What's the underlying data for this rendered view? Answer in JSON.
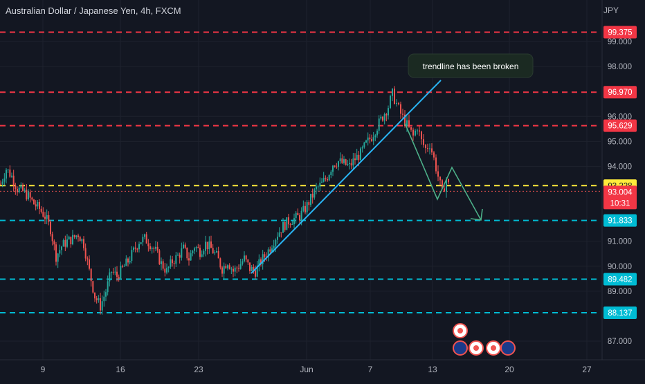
{
  "header": {
    "title": "Australian Dollar / Japanese Yen, 4h, FXCM",
    "currency": "JPY"
  },
  "annotation": {
    "text": "trendline has been broken"
  },
  "colors": {
    "background": "#131722",
    "grid": "#1e222d",
    "up": "#26a69a",
    "down": "#ef5350",
    "red_line": "#f23645",
    "cyan_line": "#00bcd4",
    "yellow_line": "#ffeb3b",
    "trendline": "#29b6f6",
    "arrow": "#4caf88",
    "text": "#d1d4dc",
    "axis_text": "#b2b5be"
  },
  "chart_data": {
    "type": "candlestick",
    "y_axis": {
      "ticks": [
        "99.000",
        "98.000",
        "96.000",
        "95.000",
        "94.000",
        "91.000",
        "90.000",
        "89.000",
        "87.000"
      ],
      "tick_values": [
        99.0,
        98.0,
        96.0,
        95.0,
        94.0,
        91.0,
        90.0,
        89.0,
        87.0
      ]
    },
    "x_axis": {
      "ticks": [
        "9",
        "16",
        "23",
        "Jun",
        "7",
        "13",
        "20",
        "27"
      ]
    },
    "levels": [
      {
        "label": "99.375",
        "value": 99.375,
        "color": "#f23645"
      },
      {
        "label": "96.970",
        "value": 96.97,
        "color": "#f23645"
      },
      {
        "label": "95.629",
        "value": 95.629,
        "color": "#f23645"
      },
      {
        "label": "93.228",
        "value": 93.228,
        "color": "#ffeb3b",
        "text_color": "#131722"
      },
      {
        "label": "91.833",
        "value": 91.833,
        "color": "#00bcd4"
      },
      {
        "label": "89.482",
        "value": 89.482,
        "color": "#00bcd4"
      },
      {
        "label": "88.137",
        "value": 88.137,
        "color": "#00bcd4"
      }
    ],
    "last_price": {
      "label": "93.004",
      "countdown": "10:31",
      "value": 93.004
    },
    "price_path": [
      [
        0,
        93.3
      ],
      [
        8,
        93.9
      ],
      [
        16,
        93.6
      ],
      [
        24,
        93.1
      ],
      [
        32,
        93.0
      ],
      [
        40,
        92.8
      ],
      [
        48,
        92.5
      ],
      [
        56,
        92.3
      ],
      [
        64,
        92.0
      ],
      [
        72,
        91.5
      ],
      [
        80,
        90.4
      ],
      [
        88,
        90.8
      ],
      [
        96,
        91.0
      ],
      [
        104,
        91.1
      ],
      [
        112,
        91.3
      ],
      [
        120,
        90.9
      ],
      [
        128,
        89.8
      ],
      [
        136,
        88.8
      ],
      [
        144,
        88.4
      ],
      [
        152,
        89.0
      ],
      [
        160,
        89.8
      ],
      [
        168,
        89.6
      ],
      [
        176,
        89.9
      ],
      [
        184,
        90.2
      ],
      [
        192,
        90.6
      ],
      [
        200,
        91.0
      ],
      [
        208,
        91.1
      ],
      [
        216,
        90.9
      ],
      [
        224,
        90.6
      ],
      [
        232,
        90.1
      ],
      [
        240,
        89.8
      ],
      [
        248,
        90.2
      ],
      [
        256,
        90.4
      ],
      [
        264,
        90.7
      ],
      [
        272,
        90.3
      ],
      [
        280,
        90.8
      ],
      [
        288,
        90.6
      ],
      [
        296,
        90.9
      ],
      [
        304,
        90.7
      ],
      [
        312,
        90.4
      ],
      [
        320,
        89.9
      ],
      [
        328,
        90.2
      ],
      [
        336,
        89.8
      ],
      [
        344,
        90.0
      ],
      [
        352,
        90.3
      ],
      [
        360,
        89.9
      ],
      [
        368,
        89.8
      ],
      [
        376,
        90.2
      ],
      [
        384,
        90.5
      ],
      [
        392,
        90.9
      ],
      [
        400,
        91.3
      ],
      [
        408,
        91.6
      ],
      [
        416,
        91.8
      ],
      [
        424,
        91.9
      ],
      [
        432,
        92.0
      ],
      [
        440,
        92.3
      ],
      [
        448,
        92.7
      ],
      [
        456,
        93.1
      ],
      [
        464,
        93.3
      ],
      [
        472,
        93.6
      ],
      [
        480,
        94.1
      ],
      [
        488,
        94.2
      ],
      [
        496,
        94.1
      ],
      [
        504,
        94.0
      ],
      [
        512,
        94.3
      ],
      [
        520,
        94.5
      ],
      [
        528,
        94.9
      ],
      [
        536,
        95.2
      ],
      [
        544,
        95.6
      ],
      [
        552,
        96.0
      ],
      [
        560,
        96.4
      ],
      [
        566,
        96.9
      ],
      [
        572,
        96.5
      ],
      [
        578,
        96.1
      ],
      [
        584,
        95.8
      ],
      [
        590,
        95.5
      ],
      [
        596,
        95.2
      ],
      [
        602,
        95.6
      ],
      [
        608,
        95.0
      ],
      [
        614,
        94.7
      ],
      [
        620,
        94.9
      ],
      [
        626,
        94.3
      ],
      [
        632,
        93.6
      ],
      [
        638,
        92.9
      ],
      [
        644,
        93.5
      ],
      [
        650,
        93.0
      ]
    ]
  }
}
